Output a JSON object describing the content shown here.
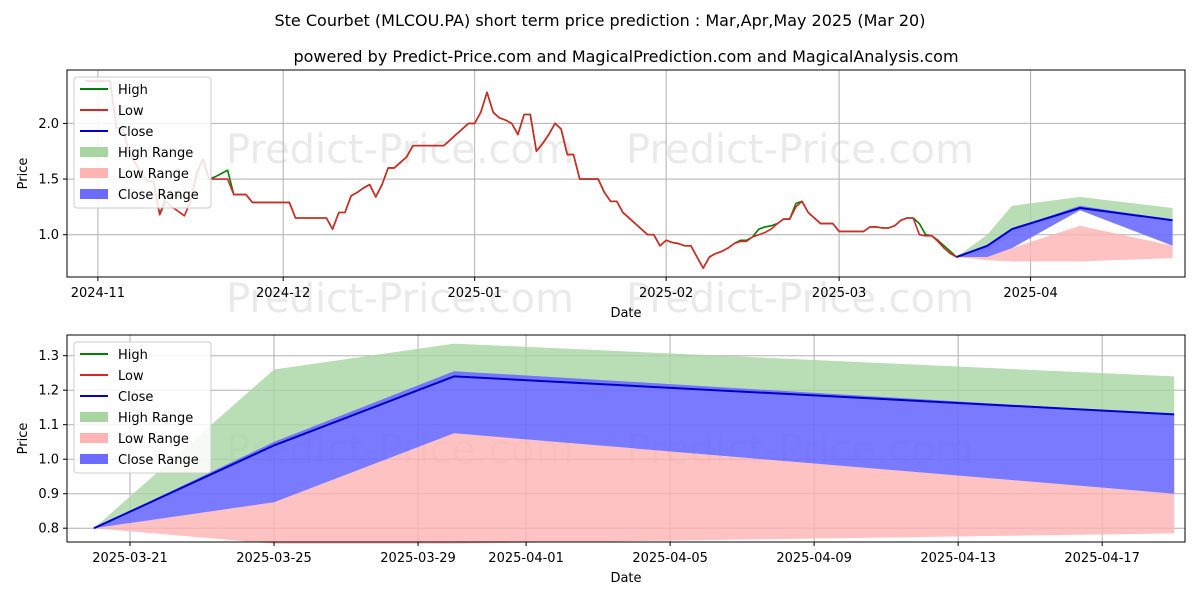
{
  "title": "Ste Courbet (MLCOU.PA) short term price prediction : Mar,Apr,May 2025 (Mar 20)",
  "subtitle": "powered by Predict-Price.com and MagicalPrediction.com and MagicalAnalysis.com",
  "watermark": "Predict-Price.com",
  "colors": {
    "high": "#008000",
    "low": "#d62728",
    "close": "#0000cc",
    "high_range": "#a8d5a2",
    "low_range": "#ffb3b3",
    "close_range": "#6b6bff",
    "grid": "#b0b0b0"
  },
  "chart_data": [
    {
      "type": "line",
      "id": "history",
      "xlabel": "Date",
      "ylabel": "Price",
      "xlim": [
        -5,
        176
      ],
      "ylim": [
        0.62,
        2.48
      ],
      "x_ticks": [
        {
          "x": 0,
          "label": "2024-11"
        },
        {
          "x": 30,
          "label": "2024-12"
        },
        {
          "x": 61,
          "label": "2025-01"
        },
        {
          "x": 92,
          "label": "2025-02"
        },
        {
          "x": 120,
          "label": "2025-03"
        },
        {
          "x": 151,
          "label": "2025-04"
        }
      ],
      "y_ticks": [
        1.0,
        1.5,
        2.0
      ],
      "legend": [
        "High",
        "Low",
        "Close",
        "High Range",
        "Low Range",
        "Close Range"
      ],
      "legend_position": "upper-left",
      "series": [
        {
          "name": "High",
          "x": [
            -2,
            1,
            2,
            3,
            4,
            5,
            6,
            7,
            8,
            9,
            10,
            11,
            12,
            13,
            14,
            15,
            16,
            17,
            18,
            19,
            20,
            21,
            22,
            23,
            24,
            25,
            26,
            27,
            28,
            29,
            30,
            31,
            32,
            33,
            34,
            35,
            36,
            37,
            38,
            39,
            40,
            41,
            42,
            43,
            44,
            45,
            46,
            47,
            48,
            49,
            50,
            51,
            52,
            53,
            54,
            55,
            56,
            57,
            58,
            59,
            60,
            61,
            62,
            63,
            64,
            65,
            66,
            67,
            68,
            69,
            70,
            71,
            72,
            73,
            74,
            75,
            76,
            77,
            78,
            79,
            80,
            81,
            82,
            83,
            84,
            85,
            86,
            87,
            88,
            89,
            90,
            91,
            92,
            93,
            94,
            95,
            96,
            97,
            98,
            99,
            100,
            101,
            102,
            103,
            104,
            105,
            106,
            107,
            108,
            109,
            110,
            111,
            112,
            113,
            114,
            115,
            116,
            117,
            118,
            119,
            120,
            121,
            122,
            123,
            124,
            125,
            126,
            127,
            128,
            129,
            130,
            131,
            132,
            133,
            134,
            135,
            136,
            137,
            138,
            139
          ],
          "values": [
            2.38,
            2.38,
            2.38,
            1.96,
            1.96,
            1.75,
            1.65,
            1.55,
            1.48,
            1.48,
            1.18,
            1.35,
            1.35,
            1.35,
            1.35,
            1.3,
            1.55,
            1.68,
            1.5,
            1.52,
            1.55,
            1.58,
            1.36,
            1.36,
            1.36,
            1.29,
            1.29,
            1.29,
            1.29,
            1.29,
            1.29,
            1.29,
            1.15,
            1.15,
            1.15,
            1.15,
            1.15,
            1.15,
            1.05,
            1.2,
            1.2,
            1.35,
            1.38,
            1.42,
            1.45,
            1.34,
            1.45,
            1.6,
            1.6,
            1.65,
            1.7,
            1.8,
            1.8,
            1.8,
            1.8,
            1.8,
            1.8,
            1.85,
            1.9,
            1.95,
            2.0,
            2.0,
            2.1,
            2.28,
            2.1,
            2.05,
            2.03,
            2.0,
            1.9,
            2.08,
            2.08,
            1.75,
            1.82,
            1.9,
            2.0,
            1.95,
            1.72,
            1.72,
            1.5,
            1.5,
            1.5,
            1.5,
            1.38,
            1.3,
            1.3,
            1.2,
            1.15,
            1.1,
            1.05,
            1.0,
            1.0,
            0.9,
            0.95,
            0.93,
            0.92,
            0.9,
            0.9,
            0.8,
            0.7,
            0.8,
            0.83,
            0.85,
            0.88,
            0.92,
            0.95,
            0.95,
            0.98,
            1.05,
            1.07,
            1.08,
            1.1,
            1.14,
            1.14,
            1.28,
            1.3,
            1.2,
            1.15,
            1.1,
            1.1,
            1.1,
            1.03,
            1.03,
            1.03,
            1.03,
            1.03,
            1.07,
            1.07,
            1.06,
            1.06,
            1.08,
            1.13,
            1.15,
            1.15,
            1.1,
            1.0,
            0.99,
            0.95,
            0.9,
            0.85,
            0.8
          ]
        },
        {
          "name": "Low",
          "x": [
            -2,
            1,
            2,
            3,
            4,
            5,
            6,
            7,
            8,
            9,
            10,
            11,
            12,
            13,
            14,
            15,
            16,
            17,
            18,
            19,
            20,
            21,
            22,
            23,
            24,
            25,
            26,
            27,
            28,
            29,
            30,
            31,
            32,
            33,
            34,
            35,
            36,
            37,
            38,
            39,
            40,
            41,
            42,
            43,
            44,
            45,
            46,
            47,
            48,
            49,
            50,
            51,
            52,
            53,
            54,
            55,
            56,
            57,
            58,
            59,
            60,
            61,
            62,
            63,
            64,
            65,
            66,
            67,
            68,
            69,
            70,
            71,
            72,
            73,
            74,
            75,
            76,
            77,
            78,
            79,
            80,
            81,
            82,
            83,
            84,
            85,
            86,
            87,
            88,
            89,
            90,
            91,
            92,
            93,
            94,
            95,
            96,
            97,
            98,
            99,
            100,
            101,
            102,
            103,
            104,
            105,
            106,
            107,
            108,
            109,
            110,
            111,
            112,
            113,
            114,
            115,
            116,
            117,
            118,
            119,
            120,
            121,
            122,
            123,
            124,
            125,
            126,
            127,
            128,
            129,
            130,
            131,
            132,
            133,
            134,
            135,
            136,
            137,
            138,
            139
          ],
          "values": [
            2.38,
            2.38,
            2.38,
            1.96,
            1.96,
            1.75,
            1.65,
            1.55,
            1.48,
            1.48,
            1.18,
            1.3,
            1.25,
            1.21,
            1.17,
            1.3,
            1.55,
            1.68,
            1.5,
            1.5,
            1.5,
            1.5,
            1.36,
            1.36,
            1.36,
            1.29,
            1.29,
            1.29,
            1.29,
            1.29,
            1.29,
            1.29,
            1.15,
            1.15,
            1.15,
            1.15,
            1.15,
            1.15,
            1.05,
            1.2,
            1.2,
            1.35,
            1.38,
            1.42,
            1.45,
            1.34,
            1.45,
            1.6,
            1.6,
            1.65,
            1.7,
            1.8,
            1.8,
            1.8,
            1.8,
            1.8,
            1.8,
            1.85,
            1.9,
            1.95,
            2.0,
            2.0,
            2.1,
            2.28,
            2.1,
            2.05,
            2.03,
            2.0,
            1.9,
            2.08,
            2.08,
            1.75,
            1.82,
            1.9,
            2.0,
            1.95,
            1.72,
            1.72,
            1.5,
            1.5,
            1.5,
            1.5,
            1.38,
            1.3,
            1.3,
            1.2,
            1.15,
            1.1,
            1.05,
            1.0,
            1.0,
            0.9,
            0.95,
            0.93,
            0.92,
            0.9,
            0.9,
            0.8,
            0.7,
            0.8,
            0.83,
            0.85,
            0.88,
            0.92,
            0.94,
            0.94,
            0.98,
            1.0,
            1.02,
            1.05,
            1.1,
            1.14,
            1.14,
            1.25,
            1.3,
            1.2,
            1.15,
            1.1,
            1.1,
            1.1,
            1.03,
            1.03,
            1.03,
            1.03,
            1.03,
            1.07,
            1.07,
            1.06,
            1.06,
            1.08,
            1.13,
            1.15,
            1.15,
            1.0,
            0.99,
            0.99,
            0.94,
            0.88,
            0.83,
            0.8
          ]
        },
        {
          "name": "Close",
          "x": [
            139,
            144,
            148,
            159,
            174
          ],
          "values": [
            0.8,
            0.9,
            1.05,
            1.24,
            1.13
          ]
        },
        {
          "name": "High Range",
          "x": [
            139,
            144,
            148,
            159,
            174
          ],
          "upper": [
            0.8,
            1.0,
            1.26,
            1.34,
            1.24
          ],
          "lower": [
            0.8,
            0.85,
            1.0,
            1.24,
            1.13
          ]
        },
        {
          "name": "Low Range",
          "x": [
            139,
            144,
            148,
            159,
            174
          ],
          "upper": [
            0.8,
            0.8,
            0.88,
            1.08,
            0.9
          ],
          "lower": [
            0.8,
            0.77,
            0.76,
            0.76,
            0.79
          ]
        },
        {
          "name": "Close Range",
          "x": [
            139,
            144,
            148,
            159,
            174
          ],
          "upper": [
            0.8,
            0.9,
            1.05,
            1.26,
            1.13
          ],
          "lower": [
            0.8,
            0.8,
            0.88,
            1.22,
            0.9
          ]
        }
      ]
    },
    {
      "type": "line",
      "id": "forecast",
      "xlabel": "Date",
      "ylabel": "Price",
      "xlim": [
        -0.75,
        30.3
      ],
      "ylim": [
        0.76,
        1.36
      ],
      "x_ticks": [
        {
          "x": 1,
          "label": "2025-03-21"
        },
        {
          "x": 5,
          "label": "2025-03-25"
        },
        {
          "x": 9,
          "label": "2025-03-29"
        },
        {
          "x": 12,
          "label": "2025-04-01"
        },
        {
          "x": 16,
          "label": "2025-04-05"
        },
        {
          "x": 20,
          "label": "2025-04-09"
        },
        {
          "x": 24,
          "label": "2025-04-13"
        },
        {
          "x": 28,
          "label": "2025-04-17"
        }
      ],
      "y_ticks": [
        0.8,
        0.9,
        1.0,
        1.1,
        1.2,
        1.3
      ],
      "legend": [
        "High",
        "Low",
        "Close",
        "High Range",
        "Low Range",
        "Close Range"
      ],
      "legend_position": "upper-left",
      "series": [
        {
          "name": "Close",
          "x": [
            0,
            5,
            10,
            30
          ],
          "values": [
            0.8,
            1.04,
            1.24,
            1.13
          ]
        },
        {
          "name": "High Range",
          "x": [
            0,
            5,
            10,
            30
          ],
          "upper": [
            0.8,
            1.26,
            1.335,
            1.24
          ],
          "lower": [
            0.8,
            1.04,
            1.24,
            1.13
          ]
        },
        {
          "name": "Low Range",
          "x": [
            0,
            5,
            10,
            30
          ],
          "upper": [
            0.8,
            0.875,
            1.075,
            0.9
          ],
          "lower": [
            0.8,
            0.755,
            0.755,
            0.785
          ]
        },
        {
          "name": "Close Range",
          "x": [
            0,
            5,
            10,
            30
          ],
          "upper": [
            0.8,
            1.05,
            1.255,
            1.13
          ],
          "lower": [
            0.8,
            0.875,
            1.075,
            0.9
          ]
        }
      ]
    }
  ]
}
